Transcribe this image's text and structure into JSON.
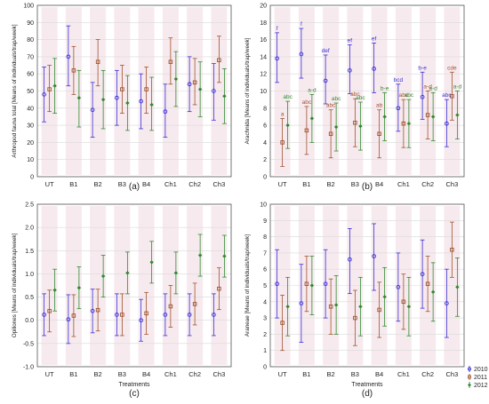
{
  "colors": {
    "2010": "#3a2fd6",
    "2011": "#a0522d",
    "2012": "#2e8b2e",
    "band": "#f6e6ec",
    "grid": "#d9d9d9",
    "frame": "#555555"
  },
  "legend": {
    "entries": [
      {
        "label": "2010",
        "color": "#3a2fd6"
      },
      {
        "label": "2011",
        "color": "#a0522d"
      },
      {
        "label": "2012",
        "color": "#2e8b2e"
      }
    ]
  },
  "chart_data": [
    {
      "id": "a",
      "type": "scatter",
      "panel_label": "(a)",
      "ylabel": "Arthropod fauna total [Means of individuals/trap/week]",
      "xlabel": "",
      "categories": [
        "UT",
        "B1",
        "B2",
        "B3",
        "B4",
        "Ch1",
        "Ch2",
        "Ch3"
      ],
      "ylim": [
        0,
        100
      ],
      "yticks": [
        "0",
        "10",
        "20",
        "30",
        "40",
        "50",
        "60",
        "70",
        "80",
        "90",
        "100"
      ],
      "grid": true,
      "series": [
        {
          "name": "2010",
          "values": [
            48,
            70,
            39,
            46,
            44,
            38,
            54,
            50
          ],
          "lower": [
            32,
            53,
            23,
            30,
            28,
            23,
            38,
            33
          ],
          "upper": [
            64,
            88,
            55,
            62,
            60,
            54,
            70,
            66
          ]
        },
        {
          "name": "2011",
          "values": [
            51,
            62,
            67,
            51,
            51,
            67,
            55,
            68
          ],
          "lower": [
            38,
            48,
            53,
            37,
            37,
            54,
            42,
            55
          ],
          "upper": [
            65,
            76,
            80,
            65,
            64,
            81,
            69,
            82
          ]
        },
        {
          "name": "2012",
          "values": [
            53,
            46,
            45,
            43,
            42,
            57,
            51,
            47
          ],
          "lower": [
            37,
            29,
            28,
            27,
            27,
            41,
            35,
            31
          ],
          "upper": [
            69,
            62,
            62,
            59,
            58,
            73,
            67,
            63
          ]
        }
      ],
      "annotations": []
    },
    {
      "id": "b",
      "type": "scatter",
      "panel_label": "(b)",
      "ylabel": "Arachnida [Means of individuals/trap/week]",
      "xlabel": "",
      "categories": [
        "UT",
        "B1",
        "B2",
        "B3",
        "B4",
        "Ch1",
        "Ch2",
        "Ch3"
      ],
      "ylim": [
        0,
        20
      ],
      "yticks": [
        "0",
        "2",
        "4",
        "6",
        "8",
        "10",
        "12",
        "14",
        "16",
        "18",
        "20"
      ],
      "grid": true,
      "series": [
        {
          "name": "2010",
          "values": [
            13.8,
            14.3,
            11.2,
            12.4,
            12.6,
            8.0,
            9.3,
            6.2
          ],
          "lower": [
            11.0,
            11.5,
            8.5,
            9.7,
            9.8,
            5.3,
            6.7,
            3.5
          ],
          "upper": [
            16.8,
            17.3,
            14.2,
            15.4,
            15.6,
            10.8,
            12.2,
            9.0
          ]
        },
        {
          "name": "2011",
          "values": [
            4.0,
            5.4,
            5.0,
            6.3,
            5.0,
            6.2,
            7.2,
            9.4
          ],
          "lower": [
            1.2,
            2.6,
            2.2,
            3.5,
            2.2,
            3.4,
            4.4,
            6.6
          ],
          "upper": [
            6.8,
            8.2,
            7.8,
            9.1,
            7.8,
            9.0,
            10.0,
            12.2
          ]
        },
        {
          "name": "2012",
          "values": [
            6.0,
            6.8,
            5.8,
            5.9,
            7.0,
            6.2,
            7.0,
            7.2
          ],
          "lower": [
            3.3,
            4.0,
            3.0,
            3.1,
            4.2,
            3.4,
            4.2,
            4.4
          ],
          "upper": [
            8.8,
            9.6,
            8.6,
            8.7,
            9.8,
            9.0,
            9.8,
            10.0
          ]
        }
      ],
      "annotations": [
        {
          "category": "UT",
          "series": "2010",
          "text": "f"
        },
        {
          "category": "B1",
          "series": "2010",
          "text": "f"
        },
        {
          "category": "B2",
          "series": "2010",
          "text": "def"
        },
        {
          "category": "B3",
          "series": "2010",
          "text": "ef"
        },
        {
          "category": "B4",
          "series": "2010",
          "text": "ef"
        },
        {
          "category": "Ch1",
          "series": "2010",
          "text": "bcd"
        },
        {
          "category": "Ch2",
          "series": "2010",
          "text": "b-e"
        },
        {
          "category": "Ch3",
          "series": "2010",
          "text": "abc"
        },
        {
          "category": "UT",
          "series": "2011",
          "text": "a"
        },
        {
          "category": "B1",
          "series": "2011",
          "text": "abc"
        },
        {
          "category": "B2",
          "series": "2011",
          "text": "abc"
        },
        {
          "category": "B3",
          "series": "2011",
          "text": "abc"
        },
        {
          "category": "B4",
          "series": "2011",
          "text": "ab"
        },
        {
          "category": "Ch1",
          "series": "2011",
          "text": "abc"
        },
        {
          "category": "Ch2",
          "series": "2011",
          "text": "a-d"
        },
        {
          "category": "Ch3",
          "series": "2011",
          "text": "cde"
        },
        {
          "category": "UT",
          "series": "2012",
          "text": "abc"
        },
        {
          "category": "B1",
          "series": "2012",
          "text": "a-d"
        },
        {
          "category": "B2",
          "series": "2012",
          "text": "abc"
        },
        {
          "category": "B3",
          "series": "2012",
          "text": "abc"
        },
        {
          "category": "B4",
          "series": "2012",
          "text": "b-e"
        },
        {
          "category": "Ch1",
          "series": "2012",
          "text": "abc"
        },
        {
          "category": "Ch2",
          "series": "2012",
          "text": "a-d"
        },
        {
          "category": "Ch3",
          "series": "2012",
          "text": "a-d"
        }
      ]
    },
    {
      "id": "c",
      "type": "scatter",
      "panel_label": "(c)",
      "ylabel": "Opiliones [Means of individuals/trap/week]",
      "xlabel": "Treatments",
      "categories": [
        "UT",
        "B1",
        "B2",
        "B3",
        "B4",
        "Ch1",
        "Ch2",
        "Ch3"
      ],
      "ylim": [
        -1.0,
        2.5
      ],
      "yticks": [
        "-1.0",
        "-0.5",
        "0.0",
        "0.5",
        "1.0",
        "1.5",
        "2.0",
        "2.5"
      ],
      "grid": true,
      "series": [
        {
          "name": "2010",
          "values": [
            0.12,
            0.02,
            0.2,
            0.12,
            0.0,
            0.12,
            0.12,
            0.12
          ],
          "lower": [
            -0.33,
            -0.5,
            -0.27,
            -0.33,
            -0.45,
            -0.33,
            -0.33,
            -0.33
          ],
          "upper": [
            0.57,
            0.55,
            0.67,
            0.57,
            0.45,
            0.57,
            0.57,
            0.57
          ]
        },
        {
          "name": "2011",
          "values": [
            0.2,
            0.1,
            0.22,
            0.12,
            0.15,
            0.3,
            0.35,
            0.68
          ],
          "lower": [
            -0.25,
            -0.35,
            -0.23,
            -0.33,
            -0.3,
            -0.15,
            -0.1,
            0.23
          ],
          "upper": [
            0.65,
            0.55,
            0.67,
            0.57,
            0.6,
            0.75,
            0.8,
            1.13
          ]
        },
        {
          "name": "2012",
          "values": [
            0.65,
            0.7,
            0.95,
            1.02,
            1.25,
            1.02,
            1.4,
            1.38
          ],
          "lower": [
            0.2,
            0.25,
            0.5,
            0.57,
            0.8,
            0.57,
            0.95,
            0.93
          ],
          "upper": [
            1.1,
            1.15,
            1.4,
            1.47,
            1.7,
            1.47,
            1.85,
            1.83
          ]
        }
      ],
      "annotations": []
    },
    {
      "id": "d",
      "type": "scatter",
      "panel_label": "(d)",
      "ylabel": "Araneae [Means of individuals/trap/week]",
      "xlabel": "Treatments",
      "categories": [
        "UT",
        "B1",
        "B2",
        "B3",
        "B4",
        "Ch1",
        "Ch2",
        "Ch3"
      ],
      "ylim": [
        0,
        10
      ],
      "yticks": [
        "0",
        "1",
        "2",
        "3",
        "4",
        "5",
        "6",
        "7",
        "8",
        "9",
        "10"
      ],
      "grid": true,
      "series": [
        {
          "name": "2010",
          "values": [
            5.1,
            3.9,
            5.1,
            6.6,
            6.8,
            4.9,
            5.7,
            3.9
          ],
          "lower": [
            3.0,
            1.5,
            3.0,
            4.5,
            4.7,
            2.8,
            3.6,
            1.8
          ],
          "upper": [
            7.2,
            6.3,
            7.2,
            8.5,
            8.8,
            7.0,
            7.8,
            6.0
          ]
        },
        {
          "name": "2011",
          "values": [
            2.7,
            5.1,
            3.7,
            3.0,
            3.5,
            4.0,
            5.1,
            7.2
          ],
          "lower": [
            1.0,
            3.4,
            2.0,
            1.3,
            1.8,
            2.3,
            3.4,
            5.5
          ],
          "upper": [
            4.4,
            6.8,
            5.4,
            4.7,
            5.2,
            5.7,
            6.8,
            8.9
          ]
        },
        {
          "name": "2012",
          "values": [
            3.7,
            5.0,
            3.8,
            3.7,
            4.3,
            3.7,
            4.6,
            4.9
          ],
          "lower": [
            1.9,
            3.2,
            2.0,
            1.9,
            2.5,
            1.9,
            2.8,
            3.1
          ],
          "upper": [
            5.5,
            6.8,
            5.6,
            5.5,
            6.1,
            5.5,
            6.4,
            6.7
          ]
        }
      ],
      "annotations": []
    }
  ]
}
